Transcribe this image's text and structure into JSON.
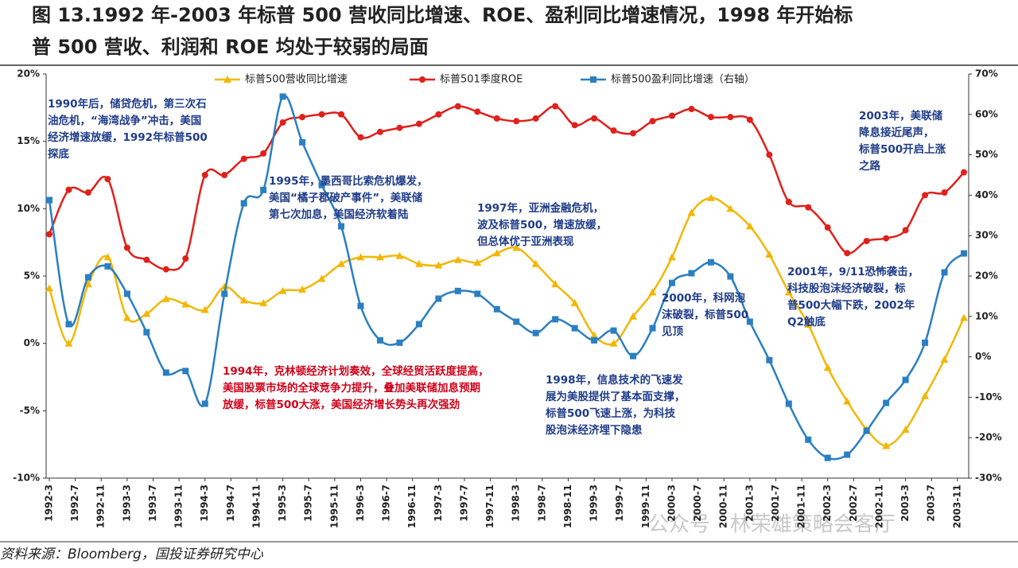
{
  "chart_data": {
    "type": "line",
    "title": [
      "图 13.1992 年-2003 年标普 500 营收同比增速、ROE、盈利同比增速情况，1998 年开始标",
      "普 500 营收、利润和 ROE 均处于较弱的局面"
    ],
    "x": [
      "1992-3",
      "1992-6",
      "1992-9",
      "1992-12",
      "1993-3",
      "1993-6",
      "1993-9",
      "1993-12",
      "1994-3",
      "1994-6",
      "1994-9",
      "1994-12",
      "1995-3",
      "1995-6",
      "1995-9",
      "1995-12",
      "1996-3",
      "1996-6",
      "1996-9",
      "1996-12",
      "1997-3",
      "1997-6",
      "1997-9",
      "1997-12",
      "1998-3",
      "1998-6",
      "1998-9",
      "1998-12",
      "1999-3",
      "1999-6",
      "1999-9",
      "1999-12",
      "2000-3",
      "2000-6",
      "2000-9",
      "2000-12",
      "2001-3",
      "2001-6",
      "2001-9",
      "2001-12",
      "2002-3",
      "2002-6",
      "2002-9",
      "2002-12",
      "2003-3",
      "2003-6",
      "2003-9",
      "2003-12"
    ],
    "xticks": [
      "1992-3",
      "1992-7",
      "1992-11",
      "1993-3",
      "1993-7",
      "1993-11",
      "1994-3",
      "1994-7",
      "1994-11",
      "1995-3",
      "1995-7",
      "1995-11",
      "1996-3",
      "1996-7",
      "1996-11",
      "1997-3",
      "1997-7",
      "1997-11",
      "1998-3",
      "1998-7",
      "1998-11",
      "1999-3",
      "1999-7",
      "1999-11",
      "2000-3",
      "2000-7",
      "2000-11",
      "2001-3",
      "2001-7",
      "2001-11",
      "2002-3",
      "2002-7",
      "2002-11",
      "2003-3",
      "2003-7",
      "2003-11"
    ],
    "series": [
      {
        "name": "标普500营收同比增速",
        "color": "#f2b705",
        "marker": "triangle",
        "values": [
          4.1,
          0.0,
          4.4,
          6.4,
          1.9,
          2.2,
          3.3,
          2.9,
          2.5,
          4.2,
          3.2,
          3.0,
          3.9,
          4.0,
          4.8,
          5.9,
          6.4,
          6.4,
          6.5,
          5.9,
          5.8,
          6.2,
          6.0,
          6.7,
          7.1,
          5.9,
          4.4,
          3.0,
          0.6,
          0.0,
          2.0,
          3.8,
          6.4,
          9.7,
          10.8,
          10.0,
          8.7,
          6.6,
          3.8,
          1.4,
          -1.8,
          -4.3,
          -6.4,
          -7.6,
          -6.4,
          -3.9,
          -1.2,
          1.9
        ]
      },
      {
        "name": "标普501季度ROE",
        "color": "#e0201b",
        "marker": "circle",
        "values": [
          8.1,
          11.4,
          11.2,
          12.2,
          7.1,
          6.2,
          5.5,
          6.3,
          12.5,
          12.5,
          13.7,
          14.1,
          16.4,
          16.8,
          17.0,
          17.0,
          15.3,
          15.7,
          16.0,
          16.3,
          17.0,
          17.6,
          17.2,
          16.7,
          16.5,
          16.7,
          17.6,
          16.2,
          16.7,
          15.8,
          15.6,
          16.5,
          16.9,
          17.4,
          16.8,
          16.8,
          16.6,
          14.0,
          10.5,
          10.1,
          8.6,
          6.7,
          7.6,
          7.8,
          8.4,
          11.0,
          11.2,
          12.7
        ]
      },
      {
        "name": "标普500盈利同比增速（右轴）",
        "color": "#2a7fc1",
        "marker": "square",
        "axis": "y2",
        "values": [
          38.8,
          8.1,
          19.7,
          22.4,
          15.6,
          6.1,
          -3.9,
          -3.5,
          -11.6,
          15.6,
          38.0,
          41.3,
          64.4,
          53.1,
          42.5,
          32.3,
          12.6,
          4.1,
          3.5,
          8.1,
          14.4,
          16.3,
          15.6,
          11.8,
          8.7,
          5.9,
          9.3,
          7.1,
          4.1,
          6.5,
          0.2,
          7.1,
          18.3,
          20.7,
          23.4,
          19.9,
          8.7,
          -0.8,
          -11.6,
          -20.5,
          -25.0,
          -24.2,
          -18.3,
          -11.4,
          -5.7,
          3.5,
          20.9,
          25.6
        ]
      }
    ],
    "ylim": [
      -10,
      20
    ],
    "yticks": [
      {
        "value": -10,
        "label": "-10%"
      },
      {
        "value": -5,
        "label": "-5%"
      },
      {
        "value": 0,
        "label": "0%"
      },
      {
        "value": 5,
        "label": "5%"
      },
      {
        "value": 10,
        "label": "10%"
      },
      {
        "value": 15,
        "label": "15%"
      },
      {
        "value": 20,
        "label": "20%"
      }
    ],
    "y2lim": [
      -30,
      70
    ],
    "y2ticks": [
      {
        "value": -30,
        "label": "-30%"
      },
      {
        "value": -20,
        "label": "-20%"
      },
      {
        "value": -10,
        "label": "-10%"
      },
      {
        "value": 0,
        "label": "0%"
      },
      {
        "value": 10,
        "label": "10%"
      },
      {
        "value": 20,
        "label": "20%"
      },
      {
        "value": 30,
        "label": "30%"
      },
      {
        "value": 40,
        "label": "40%"
      },
      {
        "value": 50,
        "label": "50%"
      },
      {
        "value": 60,
        "label": "60%"
      },
      {
        "value": 70,
        "label": "70%"
      }
    ],
    "annotations": [
      {
        "color": "#1f3c88",
        "lines": [
          "1990年后，储贷危机，第三次石",
          "油危机，“海湾战争”冲击，美国",
          "经济增速放缓，1992年标普500",
          "探底"
        ]
      },
      {
        "color": "#1f3c88",
        "lines": [
          "1995年，墨西哥比索危机爆发，",
          "美国“橘子郡破产事件”，美联储",
          "第七次加息，美国经济软着陆"
        ]
      },
      {
        "color": "#1f3c88",
        "lines": [
          "1997年，亚洲金融危机，",
          "波及标普500，增速放缓，",
          "但总体优于亚洲表现"
        ]
      },
      {
        "color": "#1f3c88",
        "lines": [
          "2003年，美联储",
          "降息接近尾声，",
          "标普500开启上涨",
          "之路"
        ]
      },
      {
        "color": "#1f3c88",
        "lines": [
          "2001年，9/11恐怖袭击，",
          "科技股泡沫经济破裂，标",
          "普500大幅下跌，2002年",
          "Q2触底"
        ]
      },
      {
        "color": "#1f3c88",
        "lines": [
          "2000年，科网泡",
          "沫破裂，标普500",
          "见顶"
        ]
      },
      {
        "color": "#d0021b",
        "lines": [
          "1994年，克林顿经济计划奏效，全球经贸活跃度提高，",
          "美国股票市场的全球竞争力提升，叠加美联储加息预期",
          "放缓，标普500大涨，美国经济增长势头再次强劲"
        ]
      },
      {
        "color": "#1f3c88",
        "lines": [
          "1998年，信息技术的飞速发",
          "展为美股提供了基本面支撑，",
          "标普500飞速上涨，为科技",
          "股泡沫经济埋下隐患"
        ]
      }
    ],
    "source": "资料来源：Bloomberg，国投证券研究中心",
    "watermark": "公众号 · 林荣雄策略会客厅"
  }
}
